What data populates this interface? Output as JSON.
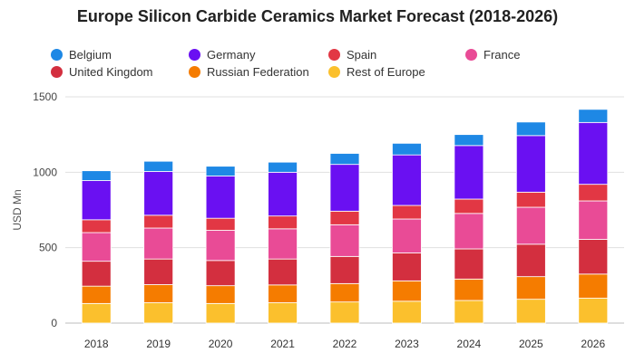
{
  "chart_data": {
    "type": "bar",
    "stacked": true,
    "title": "Europe Silicon Carbide Ceramics Market Forecast (2018-2026)",
    "xlabel": "",
    "ylabel": "USD Mn",
    "ylim": [
      0,
      1500
    ],
    "yticks": [
      "0",
      "500",
      "1000",
      "1500"
    ],
    "grid": true,
    "legend_position": "top",
    "categories": [
      "2018",
      "2019",
      "2020",
      "2021",
      "2022",
      "2023",
      "2024",
      "2025",
      "2026"
    ],
    "series": [
      {
        "name": "Rest of Europe",
        "color": "#fbc02d",
        "values": [
          130,
          135,
          130,
          135,
          140,
          145,
          150,
          158,
          165
        ]
      },
      {
        "name": "Russian Federation",
        "color": "#f57c00",
        "values": [
          115,
          120,
          118,
          118,
          122,
          135,
          142,
          150,
          160
        ]
      },
      {
        "name": "United Kingdom",
        "color": "#d32f3f",
        "values": [
          165,
          170,
          167,
          172,
          180,
          185,
          200,
          215,
          230
        ]
      },
      {
        "name": "France",
        "color": "#e94b96",
        "values": [
          190,
          205,
          200,
          200,
          210,
          225,
          235,
          245,
          255
        ]
      },
      {
        "name": "Spain",
        "color": "#e23744",
        "values": [
          85,
          85,
          80,
          85,
          90,
          90,
          95,
          100,
          110
        ]
      },
      {
        "name": "Germany",
        "color": "#6a10f2",
        "values": [
          260,
          290,
          280,
          290,
          310,
          335,
          355,
          375,
          410
        ]
      },
      {
        "name": "Belgium",
        "color": "#1e88e5",
        "values": [
          65,
          68,
          65,
          67,
          73,
          77,
          73,
          90,
          87
        ]
      }
    ]
  },
  "legend": {
    "items": [
      {
        "label": "Belgium",
        "color": "#1e88e5",
        "icon": "circle-icon"
      },
      {
        "label": "Germany",
        "color": "#6a10f2",
        "icon": "circle-icon"
      },
      {
        "label": "Spain",
        "color": "#e23744",
        "icon": "circle-icon"
      },
      {
        "label": "France",
        "color": "#e94b96",
        "icon": "circle-icon"
      },
      {
        "label": "United Kingdom",
        "color": "#d32f3f",
        "icon": "circle-icon"
      },
      {
        "label": "Russian Federation",
        "color": "#f57c00",
        "icon": "circle-icon"
      },
      {
        "label": "Rest of Europe",
        "color": "#fbc02d",
        "icon": "circle-icon"
      }
    ]
  }
}
